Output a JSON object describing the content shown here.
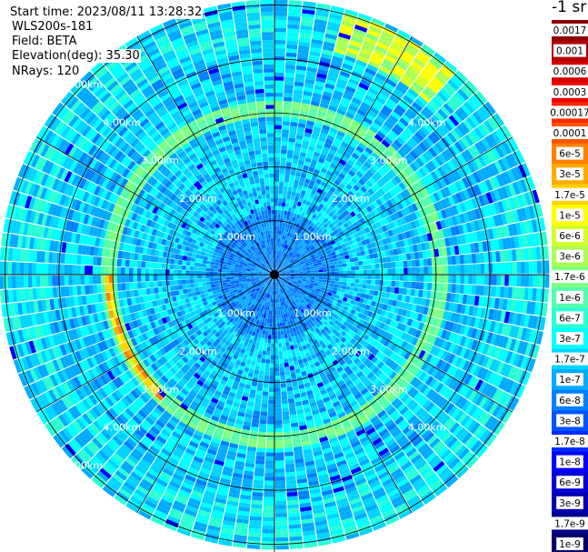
{
  "header": {
    "start_time": "Start time: 2023/08/11 13:28:32",
    "instrument": "WLS200s-181",
    "field": "Field: BETA",
    "elevation": "Elevation(deg): 35.30",
    "nrays": "NRays: 120"
  },
  "colorbar": {
    "units_label": "-1 sr",
    "labels": [
      "0.0017",
      "0.001",
      "0.0006",
      "0.0003",
      "0.00017",
      "0.0001",
      "6e-5",
      "3e-5",
      "1.7e-5",
      "1e-5",
      "6e-6",
      "3e-6",
      "1.7e-6",
      "1e-6",
      "6e-7",
      "3e-7",
      "1.7e-7",
      "1e-7",
      "6e-8",
      "3e-8",
      "1.7e-8",
      "1e-8",
      "6e-9",
      "3e-9",
      "1.7e-9",
      "1e-9"
    ],
    "colors": [
      "#8b0000",
      "#b00000",
      "#d40000",
      "#f00000",
      "#ff2a00",
      "#ff5500",
      "#ff7f00",
      "#ffaa00",
      "#ffd400",
      "#ffff00",
      "#d4ff2b",
      "#aaff55",
      "#80ff80",
      "#55ffaa",
      "#2bffd4",
      "#00ffff",
      "#00d4ff",
      "#00aaff",
      "#0080ff",
      "#0055ff",
      "#002bff",
      "#0000ff",
      "#0000d4",
      "#0000b0",
      "#00008b",
      "#000066"
    ]
  },
  "chart_data": {
    "type": "heatmap",
    "projection": "polar (PPI scan)",
    "range_rings_km": [
      1.0,
      2.0,
      3.0,
      4.0,
      5.0
    ],
    "range_ring_labels": [
      "1.00km",
      "2.00km",
      "3.00km",
      "4.00km",
      "5.00km"
    ],
    "n_rays": 120,
    "elevation_deg": 35.3,
    "field": "BETA",
    "max_range_km": 5.1,
    "color_scale": "log",
    "color_range": [
      1e-09,
      0.0017
    ],
    "features": [
      {
        "description_value": "enhanced backscatter ring",
        "range_km": [
          3.0,
          3.15
        ],
        "level": "1e-7 to 3e-5"
      },
      {
        "description_value": "strong backscatter arc",
        "azimuth_deg": [
          225,
          270
        ],
        "range_km": [
          3.0,
          3.15
        ],
        "level": "3e-5 to 1.7e-4"
      },
      {
        "description_value": "strong backscatter arc",
        "azimuth_deg": [
          20,
          40
        ],
        "range_km": [
          4.2,
          5.0
        ],
        "level": "1.7e-5 to 3e-5"
      }
    ]
  }
}
